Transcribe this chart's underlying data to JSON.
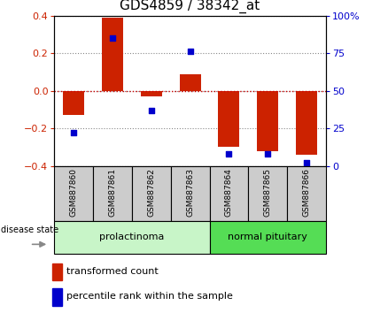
{
  "title": "GDS4859 / 38342_at",
  "samples": [
    "GSM887860",
    "GSM887861",
    "GSM887862",
    "GSM887863",
    "GSM887864",
    "GSM887865",
    "GSM887866"
  ],
  "red_bars": [
    -0.13,
    0.39,
    -0.03,
    0.09,
    -0.3,
    -0.32,
    -0.34
  ],
  "blue_dots": [
    22,
    85,
    37,
    76,
    8,
    8,
    2
  ],
  "ylim_left": [
    -0.4,
    0.4
  ],
  "ylim_right": [
    0,
    100
  ],
  "yticks_left": [
    -0.4,
    -0.2,
    0.0,
    0.2,
    0.4
  ],
  "yticks_right": [
    0,
    25,
    50,
    75,
    100
  ],
  "ytick_labels_right": [
    "0",
    "25",
    "50",
    "75",
    "100%"
  ],
  "group1_label": "prolactinoma",
  "group2_label": "normal pituitary",
  "group1_indices": [
    0,
    1,
    2,
    3
  ],
  "group2_indices": [
    4,
    5,
    6
  ],
  "group1_color": "#c8f5c8",
  "group2_color": "#55dd55",
  "disease_state_label": "disease state",
  "legend_red_label": "transformed count",
  "legend_blue_label": "percentile rank within the sample",
  "bar_color": "#cc2200",
  "dot_color": "#0000cc",
  "bar_width": 0.55,
  "zero_line_color": "#cc0000",
  "background_color": "#ffffff",
  "plot_bg": "#ffffff",
  "sample_box_color": "#cccccc",
  "title_fontsize": 11,
  "tick_fontsize": 8,
  "label_fontsize": 8
}
